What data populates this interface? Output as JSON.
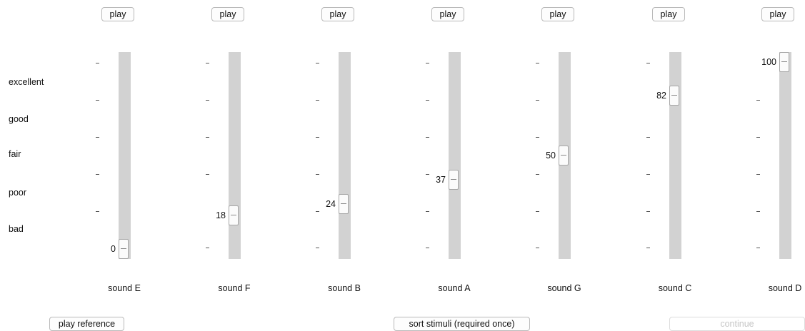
{
  "scale_labels": [
    "excellent",
    "good",
    "fair",
    "poor",
    "bad"
  ],
  "play_label": "play",
  "sliders": [
    {
      "label": "sound E",
      "value": "0"
    },
    {
      "label": "sound F",
      "value": "18"
    },
    {
      "label": "sound B",
      "value": "24"
    },
    {
      "label": "sound A",
      "value": "37"
    },
    {
      "label": "sound G",
      "value": "50"
    },
    {
      "label": "sound C",
      "value": "82"
    },
    {
      "label": "sound D",
      "value": "100"
    }
  ],
  "buttons": {
    "play_reference": "play reference",
    "sort_stimuli": "sort stimuli (required once)",
    "continue": "continue",
    "continue_enabled": false
  },
  "slider_range": [
    0,
    100
  ]
}
